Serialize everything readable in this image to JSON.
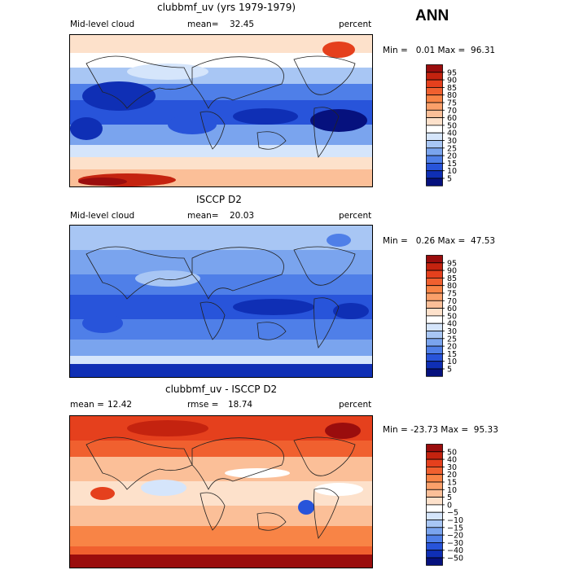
{
  "season": "ANN",
  "panels": [
    {
      "title": "clubbmf_uv (yrs 1979-1979)",
      "variable": "Mid-level cloud",
      "stat_label": "mean=",
      "stat_value": "32.45",
      "stat2_label": "",
      "stat2_value": "",
      "units": "percent",
      "min_text": "Min =   0.01 Max =  96.31",
      "colorbar_labels": [
        "95",
        "90",
        "85",
        "80",
        "75",
        "70",
        "60",
        "50",
        "40",
        "30",
        "25",
        "20",
        "15",
        "10",
        "5"
      ],
      "colorbar_colors": [
        "#9a0d0d",
        "#c4230f",
        "#e5401d",
        "#f0602f",
        "#f88446",
        "#faa06a",
        "#fbbf98",
        "#fde1cb",
        "#ffffff",
        "#d5e5fb",
        "#a8c6f4",
        "#7aa4ee",
        "#4f7fe8",
        "#2854da",
        "#0f2fb5",
        "#06117e"
      ],
      "chart_data": {
        "type": "heatmap",
        "title": "clubbmf_uv (yrs 1979-1979)",
        "variable": "Mid-level cloud",
        "units": "percent",
        "mean": 32.45,
        "min": 0.01,
        "max": 96.31,
        "contour_levels": [
          5,
          10,
          15,
          20,
          25,
          30,
          40,
          50,
          60,
          70,
          75,
          80,
          85,
          90,
          95
        ]
      }
    },
    {
      "title": "ISCCP D2",
      "variable": "Mid-level cloud",
      "stat_label": "mean=",
      "stat_value": "20.03",
      "stat2_label": "",
      "stat2_value": "",
      "units": "percent",
      "min_text": "Min =   0.26 Max =  47.53",
      "colorbar_labels": [
        "95",
        "90",
        "85",
        "80",
        "75",
        "70",
        "60",
        "50",
        "40",
        "30",
        "25",
        "20",
        "15",
        "10",
        "5"
      ],
      "colorbar_colors": [
        "#9a0d0d",
        "#c4230f",
        "#e5401d",
        "#f0602f",
        "#f88446",
        "#faa06a",
        "#fbbf98",
        "#fde1cb",
        "#ffffff",
        "#d5e5fb",
        "#a8c6f4",
        "#7aa4ee",
        "#4f7fe8",
        "#2854da",
        "#0f2fb5",
        "#06117e"
      ],
      "chart_data": {
        "type": "heatmap",
        "title": "ISCCP D2",
        "variable": "Mid-level cloud",
        "units": "percent",
        "mean": 20.03,
        "min": 0.26,
        "max": 47.53,
        "contour_levels": [
          5,
          10,
          15,
          20,
          25,
          30,
          40,
          50,
          60,
          70,
          75,
          80,
          85,
          90,
          95
        ]
      }
    },
    {
      "title": "clubbmf_uv - ISCCP D2",
      "variable": "",
      "stat_label": "mean =",
      "stat_value": "12.42",
      "stat2_label": "rmse =",
      "stat2_value": "18.74",
      "units": "percent",
      "min_text": "Min = -23.73 Max =  95.33",
      "colorbar_labels": [
        "50",
        "40",
        "30",
        "20",
        "15",
        "10",
        "5",
        "0",
        "−5",
        "−10",
        "−15",
        "−20",
        "−30",
        "−40",
        "−50"
      ],
      "colorbar_colors": [
        "#9a0d0d",
        "#c4230f",
        "#e5401d",
        "#f0602f",
        "#f88446",
        "#faa06a",
        "#fbbf98",
        "#fde1cb",
        "#ffffff",
        "#d5e5fb",
        "#a8c6f4",
        "#7aa4ee",
        "#4f7fe8",
        "#2854da",
        "#0f2fb5",
        "#06117e"
      ],
      "chart_data": {
        "type": "heatmap",
        "title": "clubbmf_uv - ISCCP D2",
        "units": "percent",
        "mean": 12.42,
        "rmse": 18.74,
        "min": -23.73,
        "max": 95.33,
        "contour_levels": [
          -50,
          -40,
          -30,
          -20,
          -15,
          -10,
          -5,
          0,
          5,
          10,
          15,
          20,
          30,
          40,
          50
        ]
      }
    }
  ]
}
